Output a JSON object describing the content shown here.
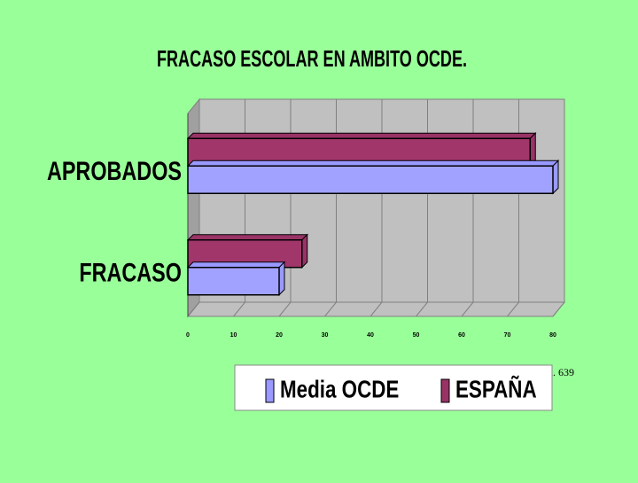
{
  "chart_data": {
    "type": "bar3d",
    "orientation": "horizontal",
    "title": "FRACASO ESCOLAR EN AMBITO OCDE.",
    "note": "n. 639",
    "categories": [
      "APROBADOS",
      "FRACASO"
    ],
    "series": [
      {
        "name": "Media OCDE",
        "color": "#9999ff",
        "values": [
          80,
          20
        ]
      },
      {
        "name": "ESPAÑA",
        "color": "#993366",
        "values": [
          75,
          25
        ]
      }
    ],
    "xlim": [
      0,
      80
    ],
    "xticks": [
      0,
      10,
      20,
      30,
      40,
      50,
      60,
      70,
      80
    ],
    "grid": true,
    "legend": "bottom"
  }
}
